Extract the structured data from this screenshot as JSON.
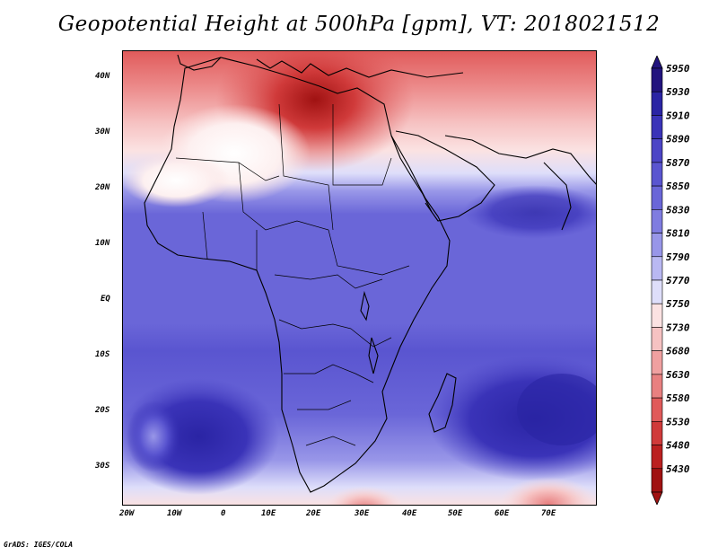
{
  "title": "Geopotential Height at 500hPa [gpm], VT: 2018021512",
  "y_ticks": [
    "40N",
    "30N",
    "20N",
    "10N",
    "EQ",
    "10S",
    "20S",
    "30S"
  ],
  "x_ticks": [
    "20W",
    "10W",
    "0",
    "10E",
    "20E",
    "30E",
    "40E",
    "50E",
    "60E",
    "70E"
  ],
  "colorbar": {
    "levels": [
      "5950",
      "5930",
      "5910",
      "5890",
      "5870",
      "5850",
      "5830",
      "5810",
      "5790",
      "5770",
      "5750",
      "5730",
      "5680",
      "5630",
      "5580",
      "5530",
      "5480",
      "5430"
    ],
    "colors": [
      "#22147e",
      "#2a24a4",
      "#3a33b8",
      "#4c45c6",
      "#5a55d0",
      "#6a66d8",
      "#7f7ce0",
      "#9896e8",
      "#b9b8f2",
      "#dedefa",
      "#fbe2e2",
      "#f6c2c2",
      "#f0a0a0",
      "#e88080",
      "#e05a5a",
      "#d03a3a",
      "#bb2020",
      "#a01212"
    ]
  },
  "credit": "GrADS: IGES/COLA"
}
